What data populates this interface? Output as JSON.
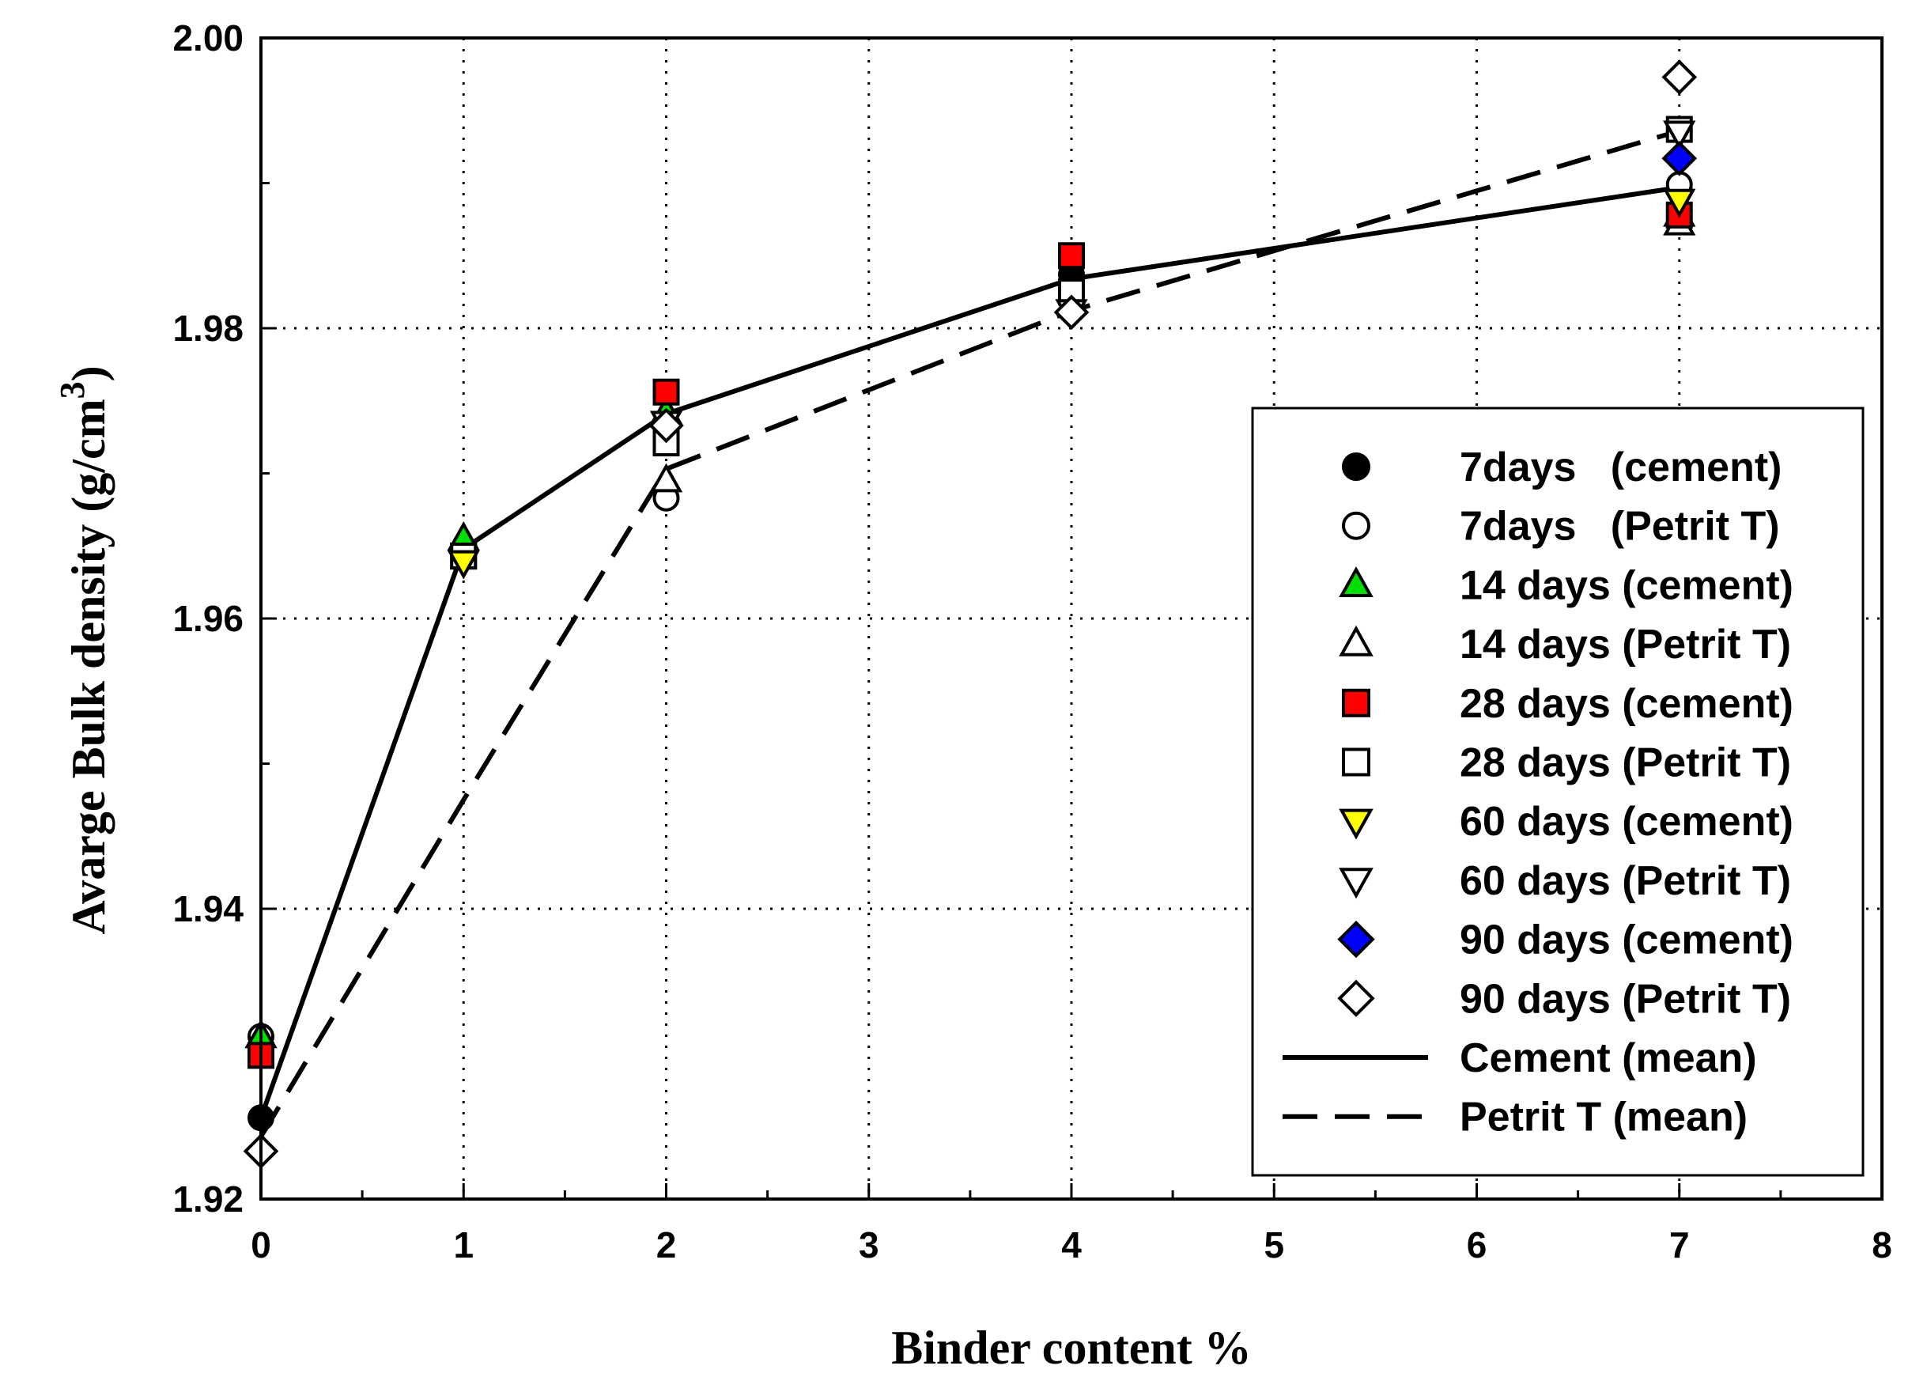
{
  "chart_data": {
    "type": "scatter",
    "xlabel": "Binder content %",
    "ylabel": "Avarge Bulk density (g/cm",
    "ylabel_sup": "3",
    "ylabel_close": ")",
    "xlim": [
      0,
      8
    ],
    "ylim": [
      1.92,
      2.0
    ],
    "x_ticks": [
      0,
      1,
      2,
      3,
      4,
      5,
      6,
      7,
      8
    ],
    "x_tick_labels": [
      "0",
      "1",
      "2",
      "3",
      "4",
      "5",
      "6",
      "7",
      "8"
    ],
    "y_ticks": [
      1.92,
      1.94,
      1.96,
      1.98,
      2.0
    ],
    "y_tick_labels": [
      "1.92",
      "1.94",
      "1.96",
      "1.98",
      "2.00"
    ],
    "grid": true,
    "legend_position": "right",
    "series": [
      {
        "name": "7days   (cement)",
        "marker": "circle",
        "fill": "#000000",
        "x": [
          0,
          4,
          7
        ],
        "y": [
          1.9256,
          1.9837,
          1.9895
        ]
      },
      {
        "name": "7days   (Petrit T)",
        "marker": "circle",
        "fill": "#ffffff",
        "x": [
          0,
          2,
          4,
          7
        ],
        "y": [
          1.9312,
          1.9683,
          1.9822,
          1.9899
        ]
      },
      {
        "name": "14 days (cement)",
        "marker": "triangle-up",
        "fill": "#00dd00",
        "x": [
          0,
          1,
          2,
          7
        ],
        "y": [
          1.9312,
          1.9655,
          1.9742,
          1.9878
        ]
      },
      {
        "name": "14 days (Petrit T)",
        "marker": "triangle-up",
        "fill": "#ffffff",
        "x": [
          2,
          7
        ],
        "y": [
          1.9695,
          1.9872
        ]
      },
      {
        "name": "28 days (cement)",
        "marker": "square",
        "fill": "#ff0000",
        "x": [
          0,
          1,
          2,
          4,
          7
        ],
        "y": [
          1.9299,
          1.9643,
          1.9756,
          1.985,
          1.9878
        ]
      },
      {
        "name": "28 days (Petrit T)",
        "marker": "square",
        "fill": "#ffffff",
        "x": [
          1,
          2,
          4,
          7
        ],
        "y": [
          1.9643,
          1.9721,
          1.9825,
          1.9937
        ]
      },
      {
        "name": "60 days (cement)",
        "marker": "triangle-down",
        "fill": "#ffff00",
        "x": [
          1,
          7
        ],
        "y": [
          1.9639,
          1.9888
        ]
      },
      {
        "name": "60 days (Petrit T)",
        "marker": "triangle-down",
        "fill": "#ffffff",
        "x": [
          2,
          4,
          7
        ],
        "y": [
          1.9735,
          1.9812,
          1.9935
        ]
      },
      {
        "name": "90 days (cement)",
        "marker": "diamond",
        "fill": "#0000ff",
        "x": [
          7
        ],
        "y": [
          1.9917
        ]
      },
      {
        "name": "90 days (Petrit T)",
        "marker": "diamond",
        "fill": "#ffffff",
        "x": [
          0,
          2,
          4,
          7
        ],
        "y": [
          1.9233,
          1.9733,
          1.9811,
          1.9973
        ]
      }
    ],
    "lines": [
      {
        "name": "Cement (mean)",
        "style": "solid",
        "x": [
          0,
          1,
          2,
          4,
          7
        ],
        "y": [
          1.9256,
          1.9648,
          1.9741,
          1.9834,
          1.9897
        ]
      },
      {
        "name": "Petrit T (mean)",
        "style": "dashed",
        "x": [
          0,
          1,
          2,
          4,
          7
        ],
        "y": [
          1.9243,
          1.9475,
          1.9703,
          1.9812,
          1.9936
        ]
      }
    ]
  }
}
